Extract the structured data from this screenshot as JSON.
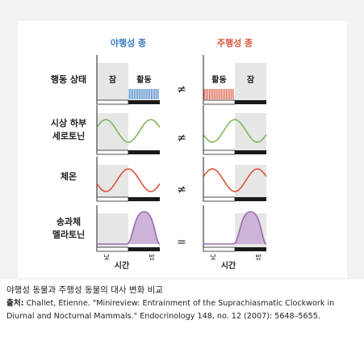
{
  "figure": {
    "columns": {
      "nocturnal": {
        "label": "야행성 종",
        "color": "#3a7cc4"
      },
      "diurnal": {
        "label": "주행성 종",
        "color": "#d9553c"
      }
    },
    "rows": [
      {
        "label_lines": [
          "행동 상태"
        ],
        "relation": "≠"
      },
      {
        "label_lines": [
          "시상 하부",
          "세로토닌"
        ],
        "relation": "≠"
      },
      {
        "label_lines": [
          "체온"
        ],
        "relation": "≠"
      },
      {
        "label_lines": [
          "송과체",
          "멜라토닌"
        ],
        "relation": "="
      }
    ],
    "behavior": {
      "nocturnal": {
        "sleep": "잠",
        "active": "활동"
      },
      "diurnal": {
        "active": "활동",
        "sleep": "잠"
      }
    },
    "axis": {
      "day": "낮",
      "night": "밤",
      "title": "시간"
    },
    "colors": {
      "serotonin": "#7fb65a",
      "temperature": "#d9553c",
      "melatonin": "#9a6aaa",
      "melatonin_fill": "#cdb3d8",
      "shade": "#e6e6e6",
      "night_bar": "#1a1a1a"
    }
  },
  "caption": "야행성 동물과 주행성 동물의 대사 변화 비교",
  "source": {
    "prefix": "출처:",
    "text": "Challet, Etienne. \"Minireview: Entrainment of the Suprachiasmatic Clockwork in Diurnal and Nocturnal Mammals.\" Endocrinology 148, no. 12 (2007): 5648–5655."
  }
}
